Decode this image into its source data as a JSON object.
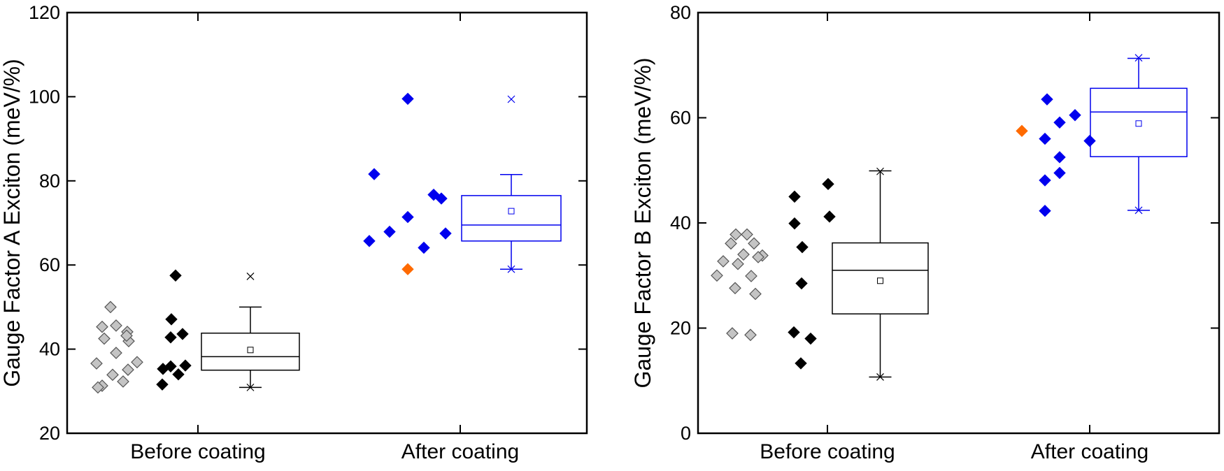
{
  "chart_data": [
    {
      "type": "box",
      "ylabel": "Gauge Factor A Exciton (meV/%)",
      "ylim": [
        20,
        120
      ],
      "yticks": [
        20,
        40,
        60,
        80,
        100,
        120
      ],
      "ytick_labels": [
        "20",
        "40",
        "60",
        "80",
        "100",
        "120"
      ],
      "categories": [
        "Before coating",
        "After coating"
      ],
      "grid": false,
      "groups": [
        {
          "category": "Before coating",
          "color": "#000000",
          "gray_points": [
            50,
            45.3,
            44.1,
            42.5,
            41.9,
            43.2,
            45.6,
            39.1,
            36.9,
            36.6,
            35.1,
            33.9,
            32.3,
            31.3,
            30.9
          ],
          "dark_points": [
            57.5,
            47.1,
            43.6,
            42.8,
            36.1,
            35.9,
            35.3,
            34.0,
            31.6
          ],
          "box": {
            "whisker_low": 30.9,
            "q1": 35.0,
            "median": 38.2,
            "q3": 43.8,
            "whisker_high": 50.0,
            "mean": 39.8,
            "outliers": [
              57.3,
              30.9
            ]
          }
        },
        {
          "category": "After coating",
          "color": "#0000ee",
          "points": [
            99.5,
            81.6,
            76.7,
            75.8,
            71.4,
            67.9,
            67.5,
            65.7,
            64.1
          ],
          "highlight_points": [
            59.0
          ],
          "box": {
            "whisker_low": 59.0,
            "q1": 65.7,
            "median": 69.5,
            "q3": 76.5,
            "whisker_high": 81.5,
            "mean": 72.8,
            "outliers": [
              99.4,
              59.0
            ]
          }
        }
      ]
    },
    {
      "type": "box",
      "ylabel": "Gauge Factor B Exciton (meV/%)",
      "ylim": [
        0,
        80
      ],
      "yticks": [
        0,
        20,
        40,
        60,
        80
      ],
      "ytick_labels": [
        "0",
        "20",
        "40",
        "60",
        "80"
      ],
      "categories": [
        "Before coating",
        "After coating"
      ],
      "grid": false,
      "groups": [
        {
          "category": "Before coating",
          "color": "#000000",
          "gray_points": [
            37.8,
            37.8,
            36.1,
            36.1,
            34.0,
            33.8,
            33.5,
            32.7,
            32.2,
            30.0,
            29.9,
            27.6,
            26.5,
            19.0,
            18.7
          ],
          "dark_points": [
            47.4,
            45.0,
            41.2,
            39.9,
            35.4,
            28.5,
            19.2,
            18.0,
            13.3
          ],
          "box": {
            "whisker_low": 10.7,
            "q1": 22.7,
            "median": 31.0,
            "q3": 36.2,
            "whisker_high": 49.9,
            "mean": 29.0,
            "outliers": [
              49.8,
              10.7
            ]
          }
        },
        {
          "category": "After coating",
          "color": "#0000ee",
          "points": [
            63.5,
            60.5,
            59.1,
            56.0,
            55.6,
            52.5,
            49.5,
            48.1,
            42.3
          ],
          "highlight_points": [
            57.5
          ],
          "box": {
            "whisker_low": 42.4,
            "q1": 52.6,
            "median": 61.1,
            "q3": 65.6,
            "whisker_high": 71.3,
            "mean": 58.9,
            "outliers": [
              71.4,
              42.4
            ]
          }
        }
      ]
    }
  ]
}
